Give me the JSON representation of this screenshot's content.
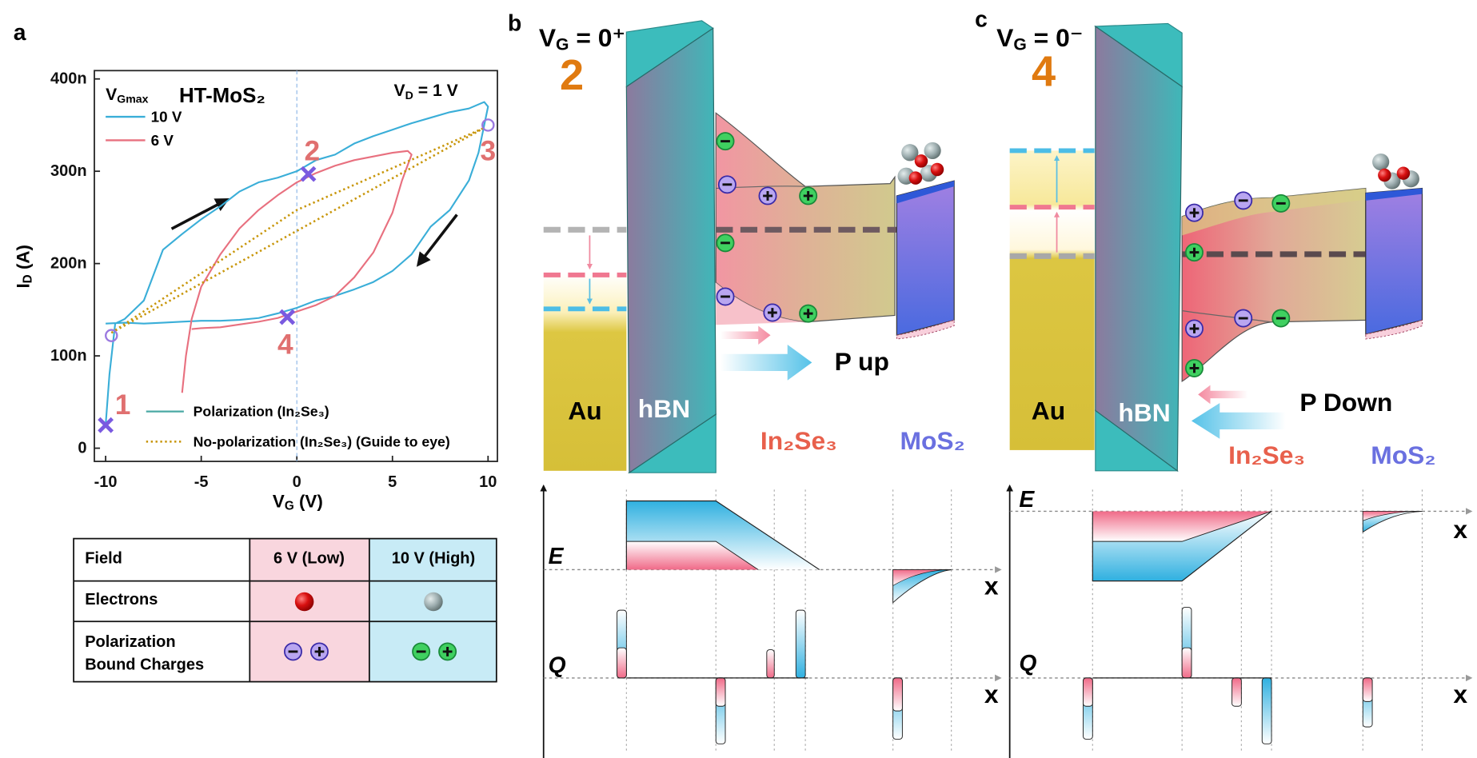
{
  "panels": {
    "a": "a"
  },
  "chart_data": {
    "type": "line",
    "title": "HT-MoS₂",
    "annotation": {
      "main": "V",
      "sub": "D",
      "rest": " = 1 V"
    },
    "xlabel": {
      "main": "V",
      "sub": "G",
      "rest": " (V)"
    },
    "ylabel": {
      "main": "I",
      "sub": "D",
      "rest": " (A)"
    },
    "legend_title": {
      "main": "V",
      "sub": "Gmax"
    },
    "xlim": [
      -10.59,
      10.49
    ],
    "ylim": [
      -1.43e-08,
      4.09e-07
    ],
    "xticks": [
      -10,
      -5,
      0,
      5,
      10
    ],
    "yticks": [
      0,
      {
        "value": 1e-07,
        "label": "100n"
      },
      {
        "value": 2e-07,
        "label": "200n"
      },
      {
        "value": 3e-07,
        "label": "300n"
      },
      {
        "value": 4e-07,
        "label": "400n"
      }
    ],
    "vline": 0,
    "series": [
      {
        "name": "10 V",
        "color": "#3aaed8",
        "x": [
          -10,
          -9.8,
          -9.5,
          -9,
          -8,
          -7,
          -6,
          -5,
          -4,
          -3,
          -2,
          -1,
          0,
          1,
          2,
          3,
          4,
          5,
          6,
          7,
          8,
          9,
          9.8,
          10,
          9.5,
          9,
          8,
          7,
          6,
          5,
          4,
          3,
          2,
          1,
          0,
          -1,
          -2,
          -3,
          -4,
          -5,
          -6,
          -7,
          -8,
          -9,
          -10
        ],
        "values": [
          2.5e-08,
          8e-08,
          1.35e-07,
          1.4e-07,
          1.6e-07,
          2.15e-07,
          2.32e-07,
          2.48e-07,
          2.62e-07,
          2.78e-07,
          2.88e-07,
          2.93e-07,
          3e-07,
          3.12e-07,
          3.18e-07,
          3.3e-07,
          3.38e-07,
          3.45e-07,
          3.52e-07,
          3.58e-07,
          3.64e-07,
          3.68e-07,
          3.75e-07,
          3.7e-07,
          3.2e-07,
          2.9e-07,
          2.58e-07,
          2.4e-07,
          2.1e-07,
          1.92e-07,
          1.8e-07,
          1.72e-07,
          1.65e-07,
          1.6e-07,
          1.52e-07,
          1.46e-07,
          1.41e-07,
          1.39e-07,
          1.38e-07,
          1.38e-07,
          1.37e-07,
          1.36e-07,
          1.35e-07,
          1.36e-07,
          1.35e-07
        ]
      },
      {
        "name": "6 V",
        "color": "#e8707f",
        "x": [
          -6,
          -5.8,
          -5.5,
          -5,
          -4,
          -3,
          -2,
          -1,
          0,
          1,
          2,
          3,
          4,
          5,
          5.8,
          6,
          5.5,
          5,
          4,
          3,
          2,
          1,
          0,
          -1,
          -2,
          -3,
          -4,
          -5,
          -5.5
        ],
        "values": [
          6e-08,
          1e-07,
          1.4e-07,
          1.75e-07,
          2.1e-07,
          2.38e-07,
          2.58e-07,
          2.74e-07,
          2.88e-07,
          2.98e-07,
          3.06e-07,
          3.12e-07,
          3.16e-07,
          3.2e-07,
          3.22e-07,
          3.18e-07,
          2.9e-07,
          2.55e-07,
          2.12e-07,
          1.85e-07,
          1.65e-07,
          1.55e-07,
          1.48e-07,
          1.41e-07,
          1.37e-07,
          1.34e-07,
          1.31e-07,
          1.3e-07,
          1.29e-07
        ]
      },
      {
        "name": "No-polarization (In₂Se₃) (Guide to eye)",
        "color": "#c8960a",
        "style": "dotted",
        "x": [
          -9.7,
          9.8,
          null,
          -9.7,
          0,
          9.8
        ],
        "values": [
          1.25e-07,
          3.47e-07,
          null,
          1.25e-07,
          2.58e-07,
          3.47e-07
        ]
      }
    ],
    "style_legend": {
      "name": "Polarization (In₂Se₃)",
      "color": "#4aa9a4"
    },
    "markers": [
      {
        "x": -10,
        "y": 2.5e-08,
        "symbol": "cross",
        "color": "#7a5ae0"
      },
      {
        "x": 0.6,
        "y": 2.97e-07,
        "symbol": "cross",
        "color": "#7a5ae0"
      },
      {
        "x": -0.5,
        "y": 1.42e-07,
        "symbol": "cross",
        "color": "#7a5ae0"
      },
      {
        "x": -9.7,
        "y": 1.22e-07,
        "symbol": "circle",
        "color": "#9a78e0"
      },
      {
        "x": 10,
        "y": 3.5e-07,
        "symbol": "circle",
        "color": "#9a78e0"
      }
    ],
    "annotations": [
      {
        "text": "1",
        "x": -9.1,
        "y": 4.7e-08
      },
      {
        "text": "2",
        "x": 0.8,
        "y": 3.22e-07
      },
      {
        "text": "3",
        "x": 10,
        "y": 3.22e-07
      },
      {
        "text": "4",
        "x": -0.6,
        "y": 1.12e-07
      }
    ]
  },
  "table": {
    "header": [
      "Field",
      "6 V (Low)",
      "10 V (High)"
    ],
    "row_labels": [
      [
        "Electrons"
      ],
      [
        "Polarization",
        "Bound Charges"
      ]
    ]
  },
  "band_b": {
    "label": "b",
    "gate": {
      "main": "V",
      "sub": "G",
      "rest": " = 0⁺"
    },
    "state": "2",
    "metal": "Au",
    "barrier": "hBN",
    "ferro": "In₂Se₃",
    "channel": "MoS₂",
    "polarization": "P up",
    "field": "E",
    "charge": "Q",
    "axis": "x"
  },
  "band_c": {
    "label": "c",
    "gate": {
      "main": "V",
      "sub": "G",
      "rest": " = 0⁻"
    },
    "state": "4",
    "metal": "Au",
    "barrier": "hBN",
    "ferro": "In₂Se₃",
    "channel": "MoS₂",
    "polarization": "P Down",
    "field": "E",
    "charge": "Q",
    "axis": "x"
  }
}
